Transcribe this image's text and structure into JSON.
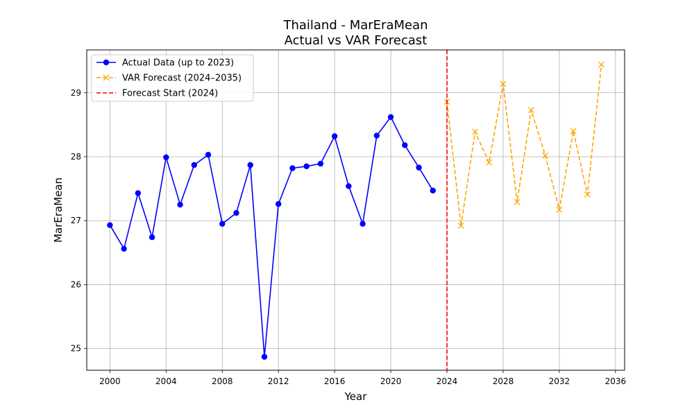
{
  "chart_data": {
    "type": "line",
    "title": "Thailand - MarEraMean",
    "subtitle": "Actual vs VAR Forecast",
    "xlabel": "Year",
    "ylabel": "MarEraMean",
    "xlim": [
      1998.35,
      2036.65
    ],
    "ylim": [
      24.66,
      29.67
    ],
    "xticks": [
      2000,
      2004,
      2008,
      2012,
      2016,
      2020,
      2024,
      2028,
      2032,
      2036
    ],
    "yticks": [
      25,
      26,
      27,
      28,
      29
    ],
    "grid": true,
    "legend_position": "top-left",
    "series": [
      {
        "name": "Actual Data (up to 2023)",
        "color": "#0000ff",
        "line_style": "solid",
        "marker": "circle",
        "x": [
          2000,
          2001,
          2002,
          2003,
          2004,
          2005,
          2006,
          2007,
          2008,
          2009,
          2010,
          2011,
          2012,
          2013,
          2014,
          2015,
          2016,
          2017,
          2018,
          2019,
          2020,
          2021,
          2022,
          2023
        ],
        "y": [
          26.93,
          26.56,
          27.43,
          26.74,
          27.99,
          27.25,
          27.87,
          28.03,
          26.95,
          27.12,
          27.87,
          24.87,
          27.26,
          27.82,
          27.85,
          27.89,
          28.32,
          27.54,
          26.95,
          28.33,
          28.62,
          28.18,
          27.83,
          27.47
        ]
      },
      {
        "name": "VAR Forecast (2024–2035)",
        "color": "#ffa500",
        "line_style": "dashed",
        "marker": "x",
        "x": [
          2024,
          2025,
          2026,
          2027,
          2028,
          2029,
          2030,
          2031,
          2032,
          2033,
          2034,
          2035
        ],
        "y": [
          28.86,
          26.92,
          28.39,
          27.91,
          29.14,
          27.29,
          28.73,
          28.02,
          27.17,
          28.4,
          27.41,
          29.44
        ]
      }
    ],
    "vertical_line": {
      "name": "Forecast Start (2024)",
      "x": 2024,
      "color": "#ff0000",
      "line_style": "dashed"
    }
  }
}
